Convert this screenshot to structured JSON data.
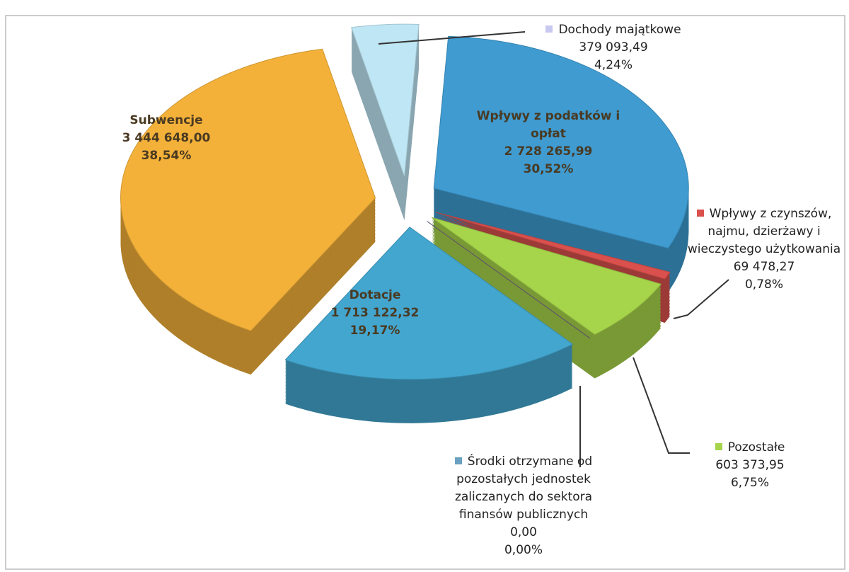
{
  "chart_data": {
    "type": "pie",
    "categories": [
      "Dochody majątkowe",
      "Wpływy z podatków i opłat",
      "Wpływy z czynszów, najmu, dzierżawy i wieczystego użytkowania",
      "Pozostałe",
      "Środki otrzymane od pozostałych jednostek zaliczanych do sektora finansów publicznych",
      "Dotacje",
      "Subwencje"
    ],
    "values": [
      4.24,
      30.52,
      0.78,
      6.75,
      0.0,
      19.17,
      38.54
    ],
    "value_labels": [
      "4,24%",
      "30,52%",
      "0,78%",
      "6,75%",
      "0,00%",
      "19,17%",
      "38,54%"
    ],
    "amounts": [
      379093.49,
      2728265.99,
      69478.27,
      603373.95,
      0.0,
      1713122.32,
      3444648.0
    ],
    "amount_labels": [
      "379 093,49",
      "2 728 265,99",
      "69 478,27",
      "603 373,95",
      "0,00",
      "1 713 122,32",
      "3 444 648,00"
    ],
    "colors": [
      "#bfe6f4",
      "#3f9bd0",
      "#d9504c",
      "#a6d44a",
      "#6e5a86",
      "#43a6cf",
      "#f3b13a"
    ],
    "marker_colors": [
      "#c9c8f0",
      "#3f9bd0",
      "#d9504c",
      "#a6d44a",
      "#6aa0c0",
      "#43a6cf",
      "#f3b13a"
    ]
  }
}
